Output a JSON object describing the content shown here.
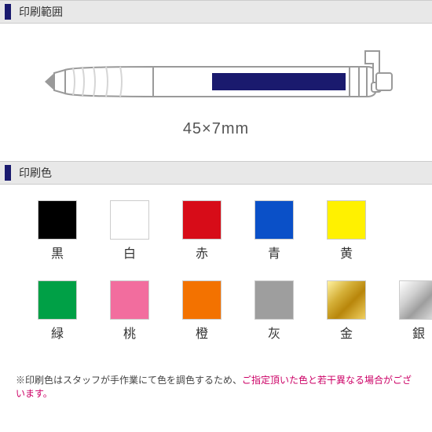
{
  "sections": {
    "print_range": {
      "title": "印刷範囲"
    },
    "print_color": {
      "title": "印刷色"
    }
  },
  "pen": {
    "dimension": "45×7mm",
    "print_area_color": "#1a1a6e",
    "outline_color": "#9a9a9a",
    "grip_shadow": "#d6d6d6"
  },
  "swatches_row1": [
    {
      "label": "黒",
      "color": "#000000",
      "gradient": ""
    },
    {
      "label": "白",
      "color": "#ffffff",
      "gradient": ""
    },
    {
      "label": "赤",
      "color": "#d70c18",
      "gradient": ""
    },
    {
      "label": "青",
      "color": "#0a50c8",
      "gradient": ""
    },
    {
      "label": "黄",
      "color": "#fff100",
      "gradient": ""
    }
  ],
  "swatches_row2": [
    {
      "label": "緑",
      "color": "#00a046",
      "gradient": ""
    },
    {
      "label": "桃",
      "color": "#f26d9e",
      "gradient": ""
    },
    {
      "label": "橙",
      "color": "#f37200",
      "gradient": ""
    },
    {
      "label": "灰",
      "color": "#9e9e9e",
      "gradient": ""
    },
    {
      "label": "金",
      "color": "#c9a200",
      "gradient": "linear-gradient(135deg,#fff2a0 0%,#d4af37 35%,#b8860b 60%,#f0d060 100%)"
    },
    {
      "label": "銀",
      "color": "#bdbdbd",
      "gradient": "linear-gradient(135deg,#ffffff 0%,#cfcfcf 35%,#9e9e9e 60%,#e6e6e6 100%)"
    }
  ],
  "note": {
    "prefix": "※印刷色はスタッフが手作業にて色を調色するため、",
    "highlight": "ご指定頂いた色と若干異なる場合がございます。"
  },
  "styling": {
    "header_bg": "#e8e8e8",
    "marker_color": "#1a1a6e"
  }
}
